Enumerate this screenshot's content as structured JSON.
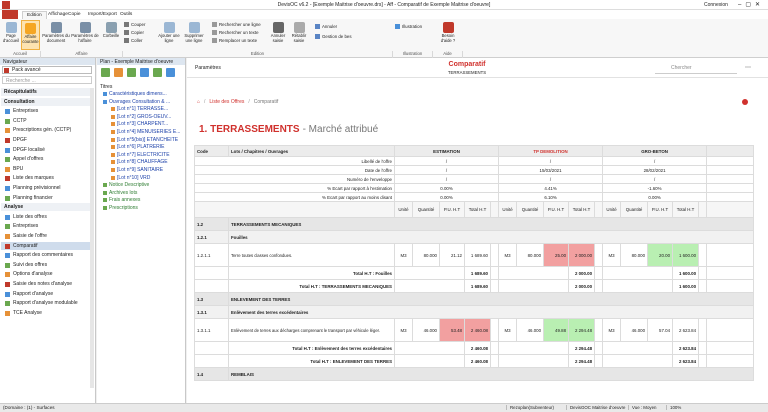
{
  "window": {
    "title": "DevisOC v6.2 - [Exemple Maitrise d'oeuvre.drs] - Aff - Comparatif de Exemple Maitrise d'oeuvre]",
    "login": "Connexion"
  },
  "ribbon": {
    "tabs": [
      "Edition",
      "Affichage",
      "Copie",
      "Import/Export",
      "Outils"
    ],
    "buttons": [
      "Page d'accueil",
      "Affaire courante",
      "Paramètres du document",
      "Paramètres de l'affaire",
      "Corbeille",
      "Couper",
      "Copier",
      "Coller",
      "Ajouter une ligne",
      "Supprimer une ligne",
      "Rechercher une ligne",
      "Rechercher un texte",
      "Remplacer un texte",
      "Annuler saisie",
      "Rétablir saisie",
      "Annuler",
      "Gestion de bes",
      "Illustration",
      "Besoin d'aide ?"
    ],
    "groups": [
      "Accueil",
      "Affaire",
      "Edition",
      "Illustration",
      "Aide"
    ]
  },
  "navigator": {
    "title": "Navigateur",
    "pack": "Pack avancé",
    "search": "Recherche ...",
    "sections": [
      {
        "label": "Récapitulatifs"
      },
      {
        "label": "Consultation",
        "items": [
          "Entreprises",
          "CCTP",
          "Prescriptions gén. (CCTP)",
          "DPGF",
          "DPGF localisé",
          "Appel d'offres",
          "BPU",
          "Liste des marques",
          "Planning prévisionnel",
          "Planning financier"
        ]
      },
      {
        "label": "Analyse",
        "items": [
          "Liste des offres",
          "Entreprises",
          "Saisie de l'offre",
          "Comparatif",
          "Rapport des commentaires",
          "Suivi des offres",
          "Options d'analyse",
          "Saisie des notes d'analyse",
          "Rapport d'analyse",
          "Rapport d'analyse modulable",
          "TCE Analyse"
        ]
      }
    ],
    "selected": "Comparatif"
  },
  "plan": {
    "title": "Plan - Exemple Maitrise d'oeuvre",
    "root": "Titres",
    "items": [
      "Caractéristiques dimens...",
      "Ouvrages Consultation & ...",
      "[Lot n°1] TERRASSE...",
      "[Lot n°2] GROS-OEUV...",
      "[Lot n°3] CHARPENT...",
      "[Lot n°4] MENUISERIES E...",
      "[Lot n°5(bis)] ETANCHEITE",
      "[Lot n°6] PLATRERIE",
      "[Lot n°7] ELECTRICITE",
      "[Lot n°8] CHAUFFAGE",
      "[Lot n°9] SANITAIRE",
      "[Lot n°10] VRD",
      "Notice Descriptive",
      "Archives lots",
      "Frais annexes",
      "Prescriptions"
    ]
  },
  "main": {
    "settings": "Paramètres",
    "title": "Comparatif",
    "subtitle": "TERRASSEMENTS",
    "search": "Chercher",
    "breadcrumb": [
      "Liste des Offres",
      "Comparatif"
    ],
    "heading": {
      "number": "1. TERRASSEMENTS",
      "status": "- Marché attribué"
    },
    "table": {
      "headers": [
        "Code",
        "Lots / Chapitres / Ouvrages"
      ],
      "offers": [
        {
          "name": "ESTIMATION",
          "color": "#222222"
        },
        {
          "name": "TP DEMOLITION",
          "color": "#d0312d"
        },
        {
          "name": "GRO-BETON",
          "color": "#222222"
        }
      ],
      "info": [
        {
          "label": "Libellé de l'offre",
          "values": [
            "/",
            "/",
            "/"
          ]
        },
        {
          "label": "Date de l'offre",
          "values": [
            "/",
            "15/03/2021",
            "28/02/2021"
          ]
        },
        {
          "label": "Numéro de l'enveloppe",
          "values": [
            "/",
            "/",
            "/"
          ]
        },
        {
          "label": "% Ecart par rapport à l'estimation",
          "values": [
            "0.00%",
            "4.41%",
            "-1.60%"
          ]
        },
        {
          "label": "% Ecart par rapport au moins disant",
          "values": [
            "0.00%",
            "6.10%",
            "0.00%"
          ]
        }
      ],
      "columns": [
        "Unité",
        "Quantité",
        "P.U. H.T",
        "Total H.T"
      ],
      "rows": [
        {
          "code": "1.2",
          "label": "TERRASSEMENTS MECANIQUES"
        },
        {
          "code": "1.2.1",
          "label": "Fouilles"
        },
        {
          "code": "1.2.1.1",
          "label": "Terre toutes classes confondues.",
          "cells": [
            [
              "M3",
              "80.000",
              "21.12",
              "1 689.60"
            ],
            [
              "M3",
              "80.000",
              "25.00",
              "2 000.00"
            ],
            [
              "M3",
              "80.000",
              "20.00",
              "1 600.00"
            ]
          ],
          "highlight": [
            null,
            "#f2a0a0",
            "#b9efb2"
          ]
        },
        {
          "label": "Total H.T : Fouilles",
          "totals": [
            "1 689.60",
            "2 000.00",
            "1 600.00"
          ]
        },
        {
          "label": "Total H.T : TERRASSEMENTS MECANIQUES",
          "totals": [
            "1 689.60",
            "2 000.00",
            "1 600.00"
          ]
        },
        {
          "code": "1.3",
          "label": "ENLEVEMENT DES TERRES"
        },
        {
          "code": "1.3.1",
          "label": "Enlèvement des terres excédentaires"
        },
        {
          "code": "1.3.1.1",
          "label": "Enlèvement de terres aux décharges comprenant le transport par véhicule léger.",
          "cells": [
            [
              "M3",
              "46.000",
              "53.48",
              "2 460.08"
            ],
            [
              "M3",
              "46.000",
              "49.88",
              "2 294.48"
            ],
            [
              "M3",
              "46.000",
              "57.04",
              "2 623.84"
            ]
          ],
          "highlight": [
            "#f2a0a0",
            "#b9efb2",
            null
          ]
        },
        {
          "label": "Total H.T : Enlèvement des terres excédentaires",
          "totals": [
            "2 460.08",
            "2 294.48",
            "2 623.84"
          ]
        },
        {
          "label": "Total H.T : ENLEVEMENT DES TERRES",
          "totals": [
            "2 460.08",
            "2 294.48",
            "2 623.84"
          ]
        },
        {
          "code": "1.4",
          "label": "REMBLAIS"
        }
      ]
    }
  },
  "status": {
    "left": "(Domaine : (1) - Surfaces",
    "right": [
      "Rezoplan(Subventeur)",
      "DevisGOC Maitrise d'oeuvre",
      "Vue : Moyen",
      "100%"
    ]
  }
}
